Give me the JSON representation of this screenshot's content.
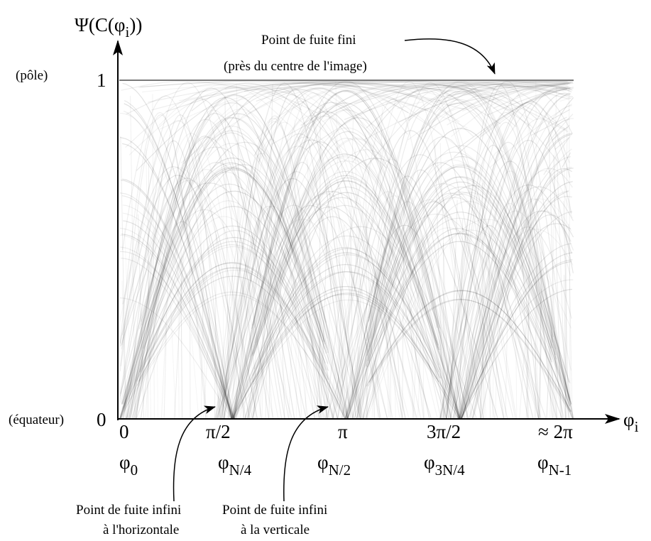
{
  "chart_data": {
    "type": "line",
    "title": "",
    "ylabel_main": "Ψ(C(φ",
    "ylabel_sub": "i",
    "ylabel_end": "))",
    "xlabel_main": "φ",
    "xlabel_sub": "i",
    "xlim": [
      0,
      6.2832
    ],
    "ylim": [
      0,
      1
    ],
    "grid": false,
    "y_ticks": [
      {
        "value": 0,
        "label": "0",
        "desc": "(équateur)"
      },
      {
        "value": 1,
        "label": "1",
        "desc": "(pôle)"
      }
    ],
    "x_ticks": [
      {
        "value": 0,
        "label": "0",
        "phi_main": "φ",
        "phi_sub": "0"
      },
      {
        "value": 1.5708,
        "label": "π/2",
        "phi_main": "φ",
        "phi_sub": "N/4"
      },
      {
        "value": 3.1416,
        "label": "π",
        "phi_main": "φ",
        "phi_sub": "N/2"
      },
      {
        "value": 4.7124,
        "label": "3π/2",
        "phi_main": "φ",
        "phi_sub": "3N/4"
      },
      {
        "value": 6.2832,
        "label": "≈ 2π",
        "phi_main": "φ",
        "phi_sub": "N-1"
      }
    ],
    "annotations": {
      "finite": [
        "Point de fuite fini",
        "(près du centre de l'image)"
      ],
      "horizontal": [
        "Point de fuite infini",
        "à l'horizontale"
      ],
      "vertical": [
        "Point de fuite infini",
        "à la verticale"
      ]
    },
    "curve_color": "#000000"
  }
}
